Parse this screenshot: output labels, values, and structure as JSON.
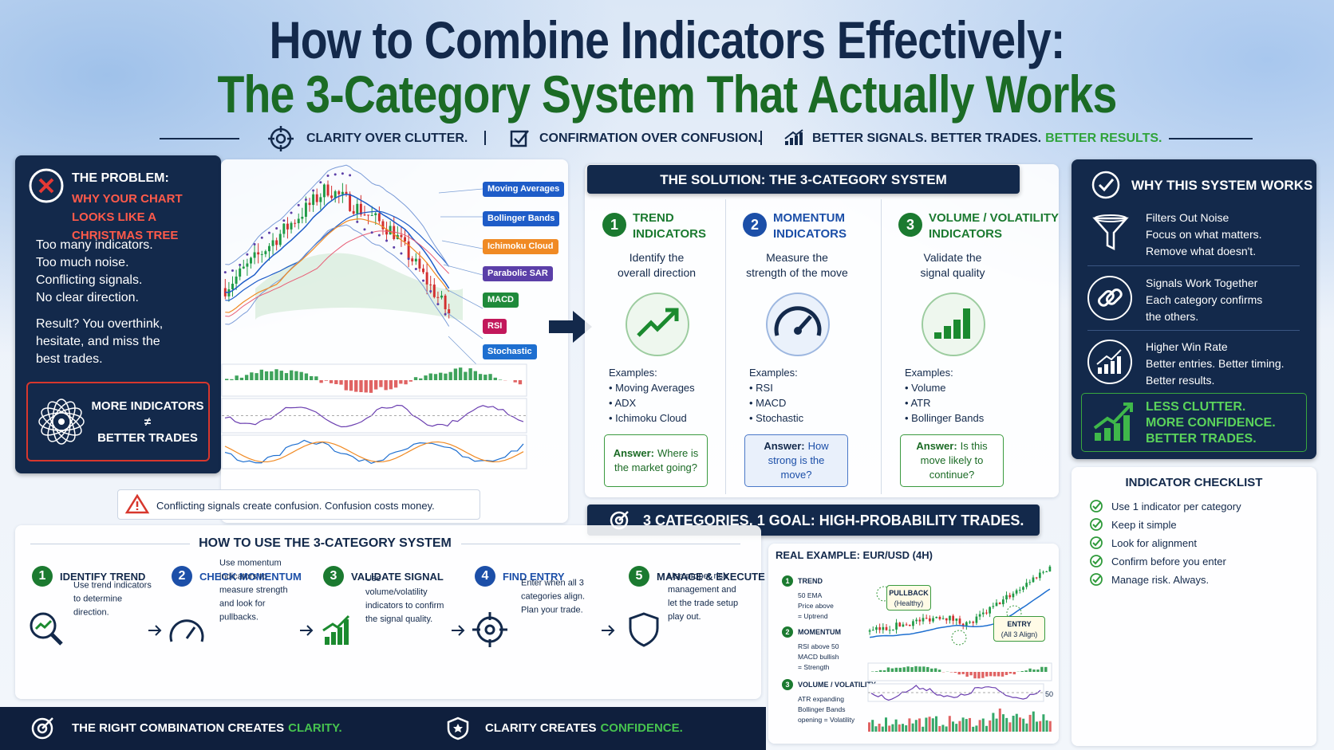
{
  "header": {
    "title_line1": "How to Combine Indicators Effectively:",
    "title_line2": "The 3-Category System That Actually Works",
    "taglines": [
      {
        "text": "CLARITY OVER CLUTTER."
      },
      {
        "text": "CONFIRMATION OVER CONFUSION."
      },
      {
        "text": "BETTER SIGNALS. BETTER TRADES.",
        "highlight": "BETTER RESULTS."
      }
    ]
  },
  "problem": {
    "heading": "THE PROBLEM:",
    "subheading": "WHY YOUR CHART LOOKS LIKE A CHRISTMAS TREE",
    "lines": [
      "Too many indicators.",
      "Too much noise.",
      "Conflicting signals.",
      "No clear direction."
    ],
    "result": "Result? You overthink, hesitate, and miss the best trades.",
    "callout": [
      "MORE INDICATORS",
      "≠",
      "BETTER TRADES"
    ]
  },
  "chart_labels": [
    "Moving Averages",
    "Bollinger Bands",
    "Ichimoku Cloud",
    "Parabolic SAR",
    "MACD",
    "RSI",
    "Stochastic"
  ],
  "warning": "Conflicting signals create confusion. Confusion costs money.",
  "solution": {
    "title": "THE SOLUTION: THE 3-CATEGORY SYSTEM",
    "categories": [
      {
        "number": "1",
        "name": [
          "TREND",
          "INDICATORS"
        ],
        "description": [
          "Identify the",
          "overall direction"
        ],
        "examples_label": "Examples:",
        "examples": [
          "Moving Averages",
          "ADX",
          "Ichimoku Cloud"
        ],
        "answer_label": "Answer:",
        "answer": "Where is the market going?"
      },
      {
        "number": "2",
        "name": [
          "MOMENTUM",
          "INDICATORS"
        ],
        "description": [
          "Measure the",
          "strength of the move"
        ],
        "examples_label": "Examples:",
        "examples": [
          "RSI",
          "MACD",
          "Stochastic"
        ],
        "answer_label": "Answer:",
        "answer": "How strong is the move?"
      },
      {
        "number": "3",
        "name": [
          "VOLUME / VOLATILITY",
          "INDICATORS"
        ],
        "description": [
          "Validate the",
          "signal quality"
        ],
        "examples_label": "Examples:",
        "examples": [
          "Volume",
          "ATR",
          "Bollinger Bands"
        ],
        "answer_label": "Answer:",
        "answer": "Is this move likely to continue?"
      }
    ],
    "banner": "3 CATEGORIES. 1 GOAL: HIGH-PROBABILITY TRADES."
  },
  "why": {
    "title": "WHY THIS SYSTEM WORKS",
    "items": [
      {
        "title": "Filters Out Noise",
        "lines": [
          "Focus on what matters.",
          "Remove what doesn't."
        ]
      },
      {
        "title": "Signals Work Together",
        "lines": [
          "Each category confirms",
          "the others."
        ]
      },
      {
        "title": "Higher Win Rate",
        "lines": [
          "Better entries. Better timing.",
          "Better results."
        ]
      }
    ],
    "highlight": [
      "LESS CLUTTER.",
      "MORE CONFIDENCE.",
      "BETTER TRADES."
    ]
  },
  "checklist": {
    "title": "INDICATOR CHECKLIST",
    "items": [
      "Use 1 indicator per category",
      "Keep it simple",
      "Look for alignment",
      "Confirm before you enter",
      "Manage risk. Always."
    ]
  },
  "how_to": {
    "title": "HOW TO USE THE 3-CATEGORY SYSTEM",
    "steps": [
      {
        "number": "1",
        "name": "IDENTIFY TREND",
        "text": "Use trend indicators to determine direction."
      },
      {
        "number": "2",
        "name": "CHECK MOMENTUM",
        "text": "Use momentum indicators to measure strength and look for pullbacks."
      },
      {
        "number": "3",
        "name": "VALIDATE SIGNAL",
        "text": "Use volume/volatility indicators to confirm the signal quality."
      },
      {
        "number": "4",
        "name": "FIND ENTRY",
        "text": "Enter when all 3 categories align. Plan your trade."
      },
      {
        "number": "5",
        "name": "MANAGE & EXECUTE",
        "text": "Use proper risk management and let the trade setup play out."
      }
    ]
  },
  "example": {
    "title": "REAL EXAMPLE: EUR/USD (4H)",
    "steps": [
      {
        "number": "1",
        "name": "TREND",
        "lines": [
          "50 EMA",
          "Price above",
          "= Uptrend"
        ]
      },
      {
        "number": "2",
        "name": "MOMENTUM",
        "lines": [
          "RSI above 50",
          "MACD bullish",
          "= Strength"
        ]
      },
      {
        "number": "3",
        "name": "VOLUME / VOLATILITY",
        "lines": [
          "ATR expanding",
          "Bollinger Bands",
          "opening = Volatility"
        ]
      }
    ],
    "pullback": [
      "PULLBACK",
      "(Healthy)"
    ],
    "entry": [
      "ENTRY",
      "(All 3 Align)"
    ],
    "rsi_level": "50"
  },
  "footer": [
    {
      "text": "THE RIGHT COMBINATION CREATES",
      "highlight": "CLARITY."
    },
    {
      "text": "CLARITY CREATES",
      "highlight": "CONFIDENCE."
    }
  ]
}
